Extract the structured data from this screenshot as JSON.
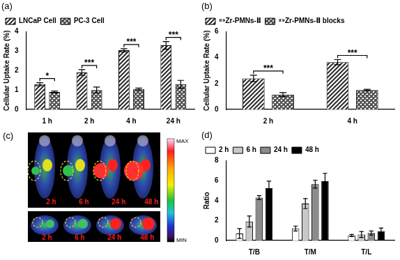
{
  "chart_data": [
    {
      "type": "bar",
      "title": "(a)",
      "ylabel": "Cellular Uptake Rate (%)",
      "categories": [
        "1 h",
        "2 h",
        "4 h",
        "24 h"
      ],
      "series": [
        {
          "name": "LNCaP Cell",
          "color": "#2a2a2a",
          "values": [
            1.3,
            1.9,
            3.05,
            3.3
          ],
          "errors": [
            0.08,
            0.15,
            0.08,
            0.2
          ]
        },
        {
          "name": "PC-3 Cell",
          "color": "#4a4a4a",
          "values": [
            0.9,
            1.0,
            1.05,
            1.3
          ],
          "errors": [
            0.05,
            0.15,
            0.05,
            0.2
          ]
        }
      ],
      "ylim": [
        0,
        4
      ],
      "yticks": [
        0,
        1,
        2,
        3,
        4
      ],
      "grid": false,
      "legend": "upper left",
      "annotations": [
        {
          "category": "1 h",
          "text": "*"
        },
        {
          "category": "2 h",
          "text": "***"
        },
        {
          "category": "4 h",
          "text": "***"
        },
        {
          "category": "24 h",
          "text": "***"
        }
      ]
    },
    {
      "type": "bar",
      "title": "(b)",
      "ylabel": "Cellular Uptake Rate (%)",
      "categories": [
        "2 h",
        "4 h"
      ],
      "series": [
        {
          "name": "⁸⁹Zr-PMNs-Ⅱ",
          "color": "#2a2a2a",
          "values": [
            2.4,
            3.65
          ],
          "errors": [
            0.25,
            0.2
          ]
        },
        {
          "name": "⁸⁹Zr-PMNs-Ⅱ blocks",
          "color": "#4a4a4a",
          "values": [
            1.15,
            1.5
          ],
          "errors": [
            0.15,
            0.05
          ]
        }
      ],
      "ylim": [
        0,
        6
      ],
      "yticks": [
        0,
        2,
        4,
        6
      ],
      "grid": false,
      "legend": "upper left",
      "annotations": [
        {
          "category": "2 h",
          "text": "***"
        },
        {
          "category": "4 h",
          "text": "***"
        }
      ]
    },
    {
      "type": "bar",
      "title": "(d)",
      "ylabel": "Ratio",
      "categories": [
        "T/B",
        "T/M",
        "T/L"
      ],
      "series": [
        {
          "name": "2 h",
          "color": "#ffffff",
          "values": [
            0.7,
            1.2,
            0.5
          ],
          "errors": [
            0.5,
            0.25,
            0.1
          ]
        },
        {
          "name": "6 h",
          "color": "#c8c8c8",
          "values": [
            1.9,
            3.7,
            0.6
          ],
          "errors": [
            0.55,
            0.5,
            0.3
          ]
        },
        {
          "name": "24 h",
          "color": "#8c8c8c",
          "values": [
            4.3,
            5.65,
            0.75
          ],
          "errors": [
            0.2,
            0.4,
            0.2
          ]
        },
        {
          "name": "48 h",
          "color": "#000000",
          "values": [
            5.25,
            5.95,
            0.95
          ],
          "errors": [
            0.7,
            0.8,
            0.3
          ]
        }
      ],
      "ylim": [
        0,
        8
      ],
      "yticks": [
        0,
        2,
        4,
        6,
        8
      ],
      "grid": false,
      "legend": "upper left"
    }
  ],
  "image_panel": {
    "title": "(c)",
    "colorbar": {
      "max": "MAX",
      "min": "MIN"
    },
    "rows": [
      [
        "2 h",
        "6 h",
        "24 h",
        "48 h"
      ],
      [
        "2 h",
        "6 h",
        "24 h",
        "48 h"
      ]
    ]
  }
}
